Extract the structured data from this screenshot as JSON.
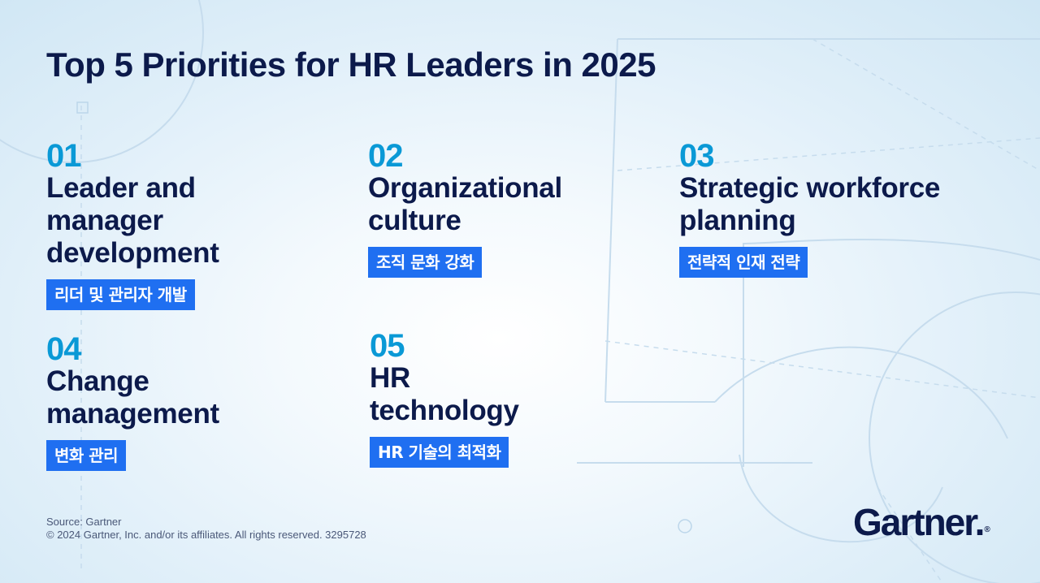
{
  "title": "Top 5 Priorities for HR Leaders in 2025",
  "priorities": [
    {
      "number": "01",
      "label_lines": [
        "Leader and",
        "manager",
        "development"
      ],
      "tag": "리더 및 관리자 개발"
    },
    {
      "number": "02",
      "label_lines": [
        "Organizational",
        "culture"
      ],
      "tag": "조직 문화 강화"
    },
    {
      "number": "03",
      "label_lines": [
        "Strategic workforce",
        "planning"
      ],
      "tag": "전략적 인재 전략"
    },
    {
      "number": "04",
      "label_lines": [
        "Change",
        "management"
      ],
      "tag": "변화 관리"
    },
    {
      "number": "05",
      "label_lines": [
        "HR",
        "technology"
      ],
      "tag": "HR 기술의 최적화"
    }
  ],
  "footer": {
    "source": "Source: Gartner",
    "copyright": "© 2024 Gartner, Inc. and/or its affiliates. All rights reserved. 3295728"
  },
  "logo": {
    "text": "Gartner",
    "mark": "."
  },
  "colors": {
    "title": "#0c1a4b",
    "number": "#0a99d6",
    "tag_bg": "#1f6ff1",
    "background": "#e0eff9"
  },
  "decor": {
    "background_numeral": "5"
  }
}
